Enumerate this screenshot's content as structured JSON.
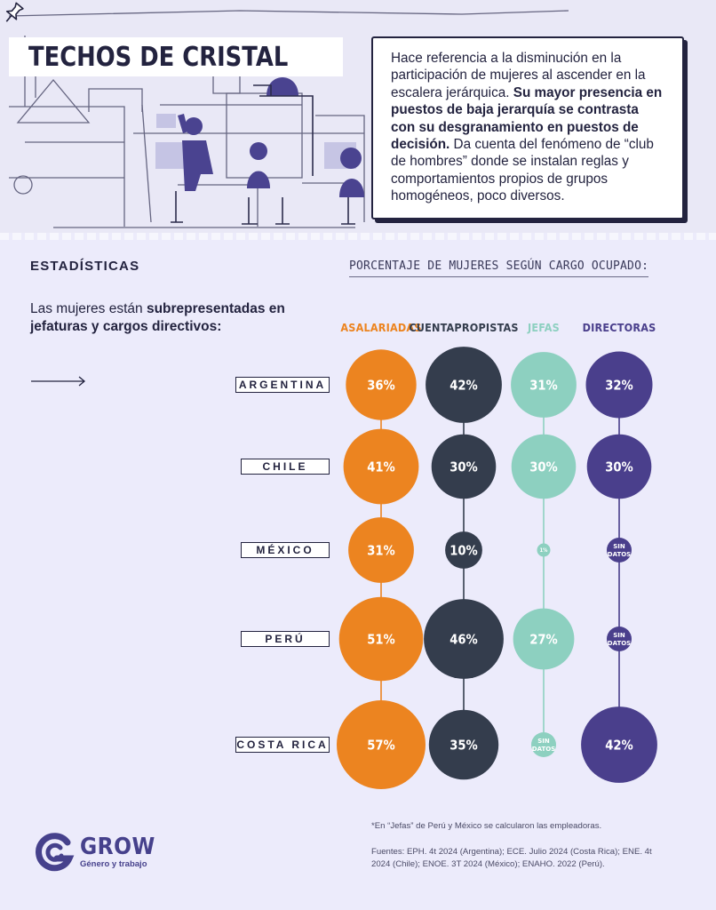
{
  "header": {
    "title": "TECHOS DE CRISTAL",
    "description_parts": [
      {
        "text": "Hace referencia a la disminución en la participación de mujeres al ascender en la escalera jerárquica. ",
        "bold": false
      },
      {
        "text": "Su mayor presencia en puestos de baja jerarquía se contrasta con su desgranamiento en puestos de decisión.",
        "bold": true
      },
      {
        "text": " Da cuenta del fenómeno de “club de hombres” donde se instalan reglas y comportamientos propios de grupos homogéneos, poco diversos.",
        "bold": false
      }
    ]
  },
  "stats_label": "ESTADÍSTICAS",
  "subtitle": {
    "normal": "Las mujeres están ",
    "bold": "subrepresentadas en jefaturas y cargos directivos:"
  },
  "colors": {
    "asalariadas": "#ec8420",
    "cuentapropistas": "#343d4d",
    "jefas": "#8dd0c0",
    "directoras": "#4a3f8c",
    "ink": "#23233f",
    "logo": "#46418c"
  },
  "chart_data": {
    "type": "bubble",
    "title": "PORCENTAJE DE MUJERES SEGÚN CARGO OCUPADO:",
    "categories": [
      "ARGENTINA",
      "CHILE",
      "MÉXICO",
      "PERÚ",
      "COSTA RICA"
    ],
    "series": [
      {
        "name": "ASALARIADAS",
        "color": "#ec8420",
        "values": [
          36,
          41,
          31,
          51,
          57
        ],
        "labels": [
          "36%",
          "41%",
          "31%",
          "51%",
          "57%"
        ]
      },
      {
        "name": "CUENTAPROPISTAS",
        "color": "#343d4d",
        "values": [
          42,
          30,
          10,
          46,
          35
        ],
        "labels": [
          "42%",
          "30%",
          "10%",
          "46%",
          "35%"
        ]
      },
      {
        "name": "JEFAS",
        "color": "#8dd0c0",
        "values": [
          31,
          30,
          1,
          27,
          null
        ],
        "labels": [
          "31%",
          "30%",
          "1%",
          "27%",
          "SIN DATOS"
        ]
      },
      {
        "name": "DIRECTORAS",
        "color": "#4a3f8c",
        "values": [
          32,
          30,
          null,
          null,
          42
        ],
        "labels": [
          "32%",
          "30%",
          "SIN DATOS",
          "SIN DATOS",
          "42%"
        ]
      }
    ],
    "missing_label": [
      "SIN",
      "DATOS"
    ]
  },
  "footnote": "*En “Jefas” de Perú y México se calcularon las empleadoras.",
  "sources": "Fuentes: EPH. 4t 2024 (Argentina); ECE. Julio 2024 (Costa Rica); ENE. 4t 2024 (Chile); ENOE. 3T 2024 (México); ENAHO. 2022 (Perú).",
  "logo": {
    "name": "GROW",
    "tagline": "Género y trabajo"
  }
}
